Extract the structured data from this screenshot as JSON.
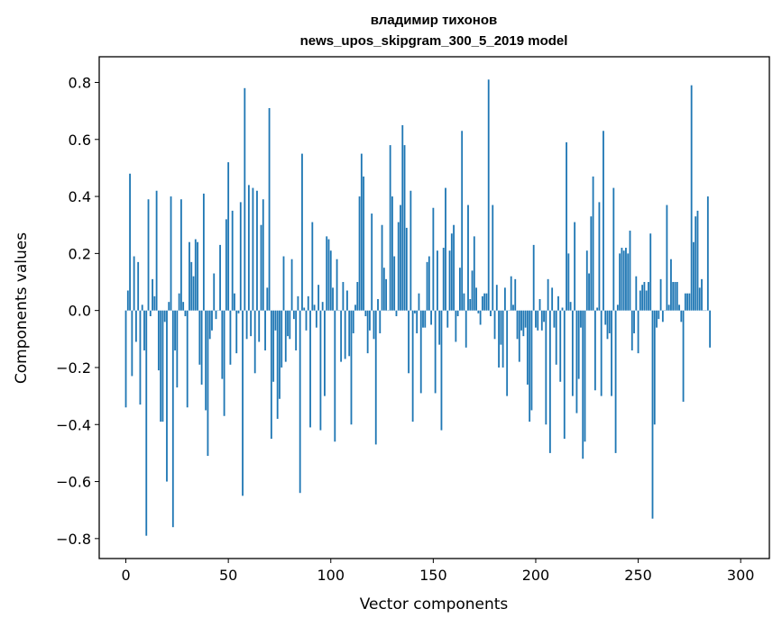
{
  "chart_data": {
    "type": "bar",
    "title": "владимир тихонов",
    "subtitle": "news_upos_skipgram_300_5_2019 model",
    "xlabel": "Vector components",
    "ylabel": "Components values",
    "xlim": [
      -13,
      314
    ],
    "ylim": [
      -0.87,
      0.89
    ],
    "xticks": [
      0,
      50,
      100,
      150,
      200,
      250,
      300
    ],
    "yticks": [
      -0.8,
      -0.6,
      -0.4,
      -0.2,
      0.0,
      0.2,
      0.4,
      0.6,
      0.8
    ],
    "ytick_labels": [
      "−0.8",
      "−0.6",
      "−0.4",
      "−0.2",
      "0.0",
      "0.2",
      "0.4",
      "0.6",
      "0.8"
    ],
    "bar_color": "#1f77b4",
    "values": [
      -0.34,
      0.07,
      0.48,
      -0.23,
      0.19,
      -0.11,
      0.17,
      -0.33,
      0.02,
      -0.14,
      -0.79,
      0.39,
      -0.02,
      0.11,
      0.05,
      0.42,
      -0.21,
      -0.39,
      -0.39,
      -0.04,
      -0.6,
      0.03,
      0.4,
      -0.76,
      -0.14,
      -0.27,
      0.06,
      0.39,
      0.03,
      -0.02,
      -0.34,
      0.24,
      0.17,
      0.12,
      0.25,
      0.24,
      -0.19,
      -0.26,
      0.41,
      -0.35,
      -0.51,
      -0.1,
      -0.07,
      0.13,
      -0.03,
      0.0,
      0.23,
      -0.24,
      -0.37,
      0.32,
      0.52,
      -0.19,
      0.35,
      0.06,
      -0.15,
      -0.01,
      0.38,
      -0.65,
      0.78,
      -0.1,
      0.44,
      -0.09,
      0.43,
      -0.22,
      0.42,
      -0.11,
      0.3,
      0.39,
      -0.14,
      0.08,
      0.71,
      -0.45,
      -0.25,
      -0.07,
      -0.38,
      -0.31,
      -0.2,
      0.19,
      -0.18,
      -0.09,
      -0.1,
      0.18,
      -0.03,
      -0.14,
      0.05,
      -0.64,
      0.55,
      0.01,
      -0.07,
      0.05,
      -0.41,
      0.31,
      0.02,
      -0.06,
      0.09,
      -0.42,
      0.03,
      -0.3,
      0.26,
      0.25,
      0.21,
      0.08,
      -0.46,
      0.18,
      0.0,
      -0.18,
      0.1,
      -0.17,
      0.07,
      -0.16,
      -0.4,
      -0.08,
      0.02,
      0.1,
      0.4,
      0.55,
      0.47,
      -0.02,
      -0.15,
      -0.07,
      0.34,
      -0.1,
      -0.47,
      0.04,
      -0.08,
      0.3,
      0.15,
      0.11,
      0.0,
      0.58,
      0.4,
      0.19,
      -0.02,
      0.31,
      0.37,
      0.65,
      0.58,
      0.29,
      -0.22,
      0.42,
      -0.39,
      -0.01,
      -0.08,
      0.06,
      -0.29,
      -0.06,
      -0.06,
      0.17,
      0.19,
      -0.05,
      0.36,
      -0.29,
      0.21,
      -0.12,
      -0.42,
      0.22,
      0.43,
      -0.06,
      0.21,
      0.27,
      0.3,
      -0.11,
      -0.02,
      0.15,
      0.63,
      0.06,
      -0.13,
      0.37,
      0.04,
      0.14,
      0.26,
      0.08,
      -0.01,
      -0.05,
      0.05,
      0.06,
      0.06,
      0.81,
      -0.02,
      0.37,
      -0.1,
      0.09,
      -0.2,
      -0.12,
      -0.2,
      0.08,
      -0.3,
      0.0,
      0.12,
      0.02,
      0.11,
      -0.1,
      -0.18,
      -0.07,
      -0.09,
      -0.06,
      -0.26,
      -0.39,
      -0.35,
      0.23,
      -0.06,
      -0.07,
      0.04,
      -0.07,
      -0.04,
      -0.4,
      0.11,
      -0.5,
      0.08,
      -0.06,
      -0.19,
      0.05,
      -0.25,
      0.01,
      -0.45,
      0.59,
      0.2,
      0.03,
      -0.3,
      0.31,
      -0.36,
      -0.24,
      -0.06,
      -0.52,
      -0.46,
      0.21,
      0.13,
      0.33,
      0.47,
      -0.28,
      0.01,
      0.38,
      -0.3,
      0.63,
      -0.05,
      -0.1,
      -0.08,
      -0.3,
      0.43,
      -0.5,
      0.02,
      0.2,
      0.22,
      0.21,
      0.22,
      0.2,
      0.28,
      -0.14,
      -0.08,
      0.12,
      -0.15,
      0.07,
      0.09,
      0.1,
      0.07,
      0.1,
      0.27,
      -0.73,
      -0.4,
      -0.06,
      -0.03,
      0.11,
      -0.04,
      0.0,
      0.37,
      0.02,
      0.18,
      0.1,
      0.1,
      0.1,
      0.02,
      -0.04,
      -0.32,
      0.06,
      0.06,
      0.06,
      0.79,
      0.24,
      0.33,
      0.35,
      0.08,
      0.11,
      0.0,
      0.0,
      0.4,
      -0.13
    ]
  }
}
